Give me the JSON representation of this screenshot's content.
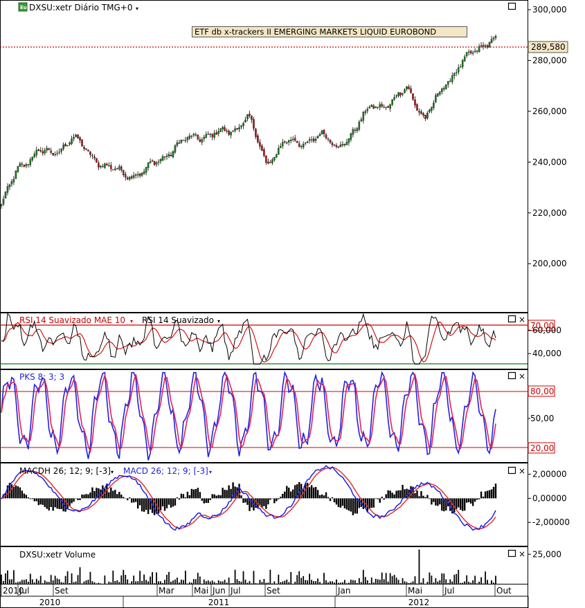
{
  "colors": {
    "up": "#1a7a1a",
    "down": "#b01818",
    "price_line": "#cc0000",
    "rsi": "#000000",
    "rsi_ma": "#cc0000",
    "rsi_upper": "#cc0000",
    "rsi_lower": "#008000",
    "stoch_k": "#2020e0",
    "stoch_d": "#e0205a",
    "macd": "#2020e0",
    "macd_signal": "#e03030",
    "histogram": "#000000",
    "volume": "#000000",
    "label_bg": "#f3e6c4"
  },
  "panels": {
    "price": {
      "symbol_label": "DXSU:xetr Diário TMG+0",
      "title_box": "ETF db x-trackers II EMERGING MARKETS LIQUID EUROBOND",
      "last_price_label": "289,580",
      "y_ticks": [
        "300,000",
        "280,000",
        "260,000",
        "240,000",
        "220,000",
        "200,000"
      ],
      "y_tick_values": [
        300,
        280,
        260,
        240,
        220,
        200
      ],
      "ylim": [
        181,
        303.8
      ]
    },
    "rsi": {
      "label_a": "RSI 14 Suavizado MAE 10",
      "label_b": "RSI 14 Suavizado",
      "upper_label": "70,00",
      "y_ticks": [
        "60,000",
        "40,000"
      ],
      "y_tick_values": [
        60,
        40
      ],
      "upper": 70,
      "lower": 30,
      "ylim": [
        26.5,
        75
      ]
    },
    "stoch": {
      "label": "PKS 8; 3; 3",
      "upper_label": "80,00",
      "mid_tick": "50,00",
      "lower_label": "20,00",
      "upper": 80,
      "lower": 20,
      "mid": 50,
      "ylim": [
        0,
        100
      ]
    },
    "macd": {
      "label_a": "MACDH 26; 12; 9; [-3]",
      "label_b": "MACD 26; 12; 9; [-3]",
      "y_ticks": [
        "2,00000",
        "0,00000",
        "-2,00000"
      ],
      "y_tick_values": [
        2,
        0,
        -2
      ],
      "ylim": [
        -4,
        2.9
      ]
    },
    "volume": {
      "label": "DXSU:xetr Volume",
      "y_ticks": [
        "25,000"
      ],
      "y_tick_values": [
        25
      ],
      "ylim": [
        0,
        31
      ]
    }
  },
  "x_axis": {
    "months": [
      "2010",
      "Jul",
      "Set",
      "Mar",
      "Mai",
      "Jun",
      "Jul",
      "Set",
      "Jan",
      "Mai",
      "Jul",
      "Out"
    ],
    "years": [
      "2010",
      "2011",
      "2012"
    ]
  },
  "chart_data": {
    "type": "line",
    "title": "ETF db x-trackers II EMERGING MARKETS LIQUID EUROBOND",
    "series": [
      {
        "name": "DXSU:xetr",
        "x": [
          "2010-05",
          "2010-07",
          "2010-08",
          "2010-09",
          "2010-10",
          "2010-11",
          "2010-12",
          "2011-01",
          "2011-02",
          "2011-03",
          "2011-04",
          "2011-05",
          "2011-06",
          "2011-07",
          "2011-08",
          "2011-09",
          "2011-10",
          "2011-11",
          "2011-12",
          "2012-01",
          "2012-02",
          "2012-03",
          "2012-04",
          "2012-05",
          "2012-06",
          "2012-07",
          "2012-08",
          "2012-09",
          "2012-10"
        ],
        "values": [
          223,
          238,
          244,
          243,
          250,
          243,
          238,
          235,
          236,
          241,
          247,
          250,
          251,
          252,
          258,
          239,
          248,
          247,
          251,
          246,
          252,
          263,
          262,
          270,
          256,
          270,
          278,
          285,
          289.58
        ]
      }
    ],
    "ylim": [
      181,
      303.8
    ]
  }
}
